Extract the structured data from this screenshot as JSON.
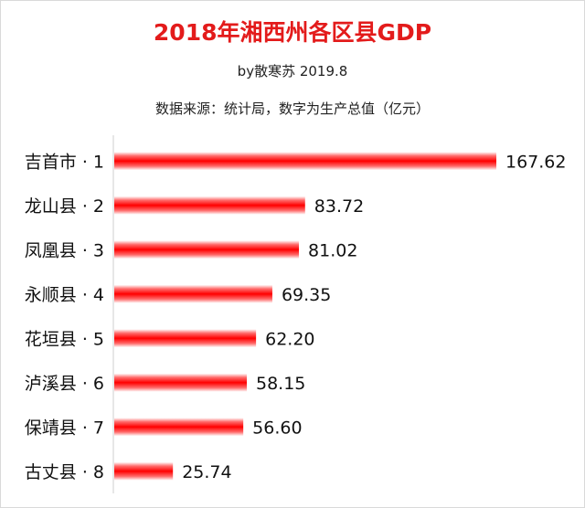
{
  "chart_data": {
    "type": "bar",
    "orientation": "horizontal",
    "title": "2018年湘西州各区县GDP",
    "subtitle": "by散寒苏 2019.8",
    "note": "数据来源：统计局，数字为生产总值（亿元）",
    "categories": [
      "吉首市 · 1",
      "龙山县 · 2",
      "凤凰县 · 3",
      "永顺县 · 4",
      "花垣县 · 5",
      "泸溪县 · 6",
      "保靖县 · 7",
      "古丈县 · 8"
    ],
    "values": [
      167.62,
      83.72,
      81.02,
      69.35,
      62.2,
      58.15,
      56.6,
      25.74
    ],
    "value_labels": [
      "167.62",
      "83.72",
      "81.02",
      "69.35",
      "62.20",
      "58.15",
      "56.60",
      "25.74"
    ],
    "bar_color": "#ff0000",
    "title_color": "#e31b1b",
    "grid": false,
    "legend": "none"
  }
}
